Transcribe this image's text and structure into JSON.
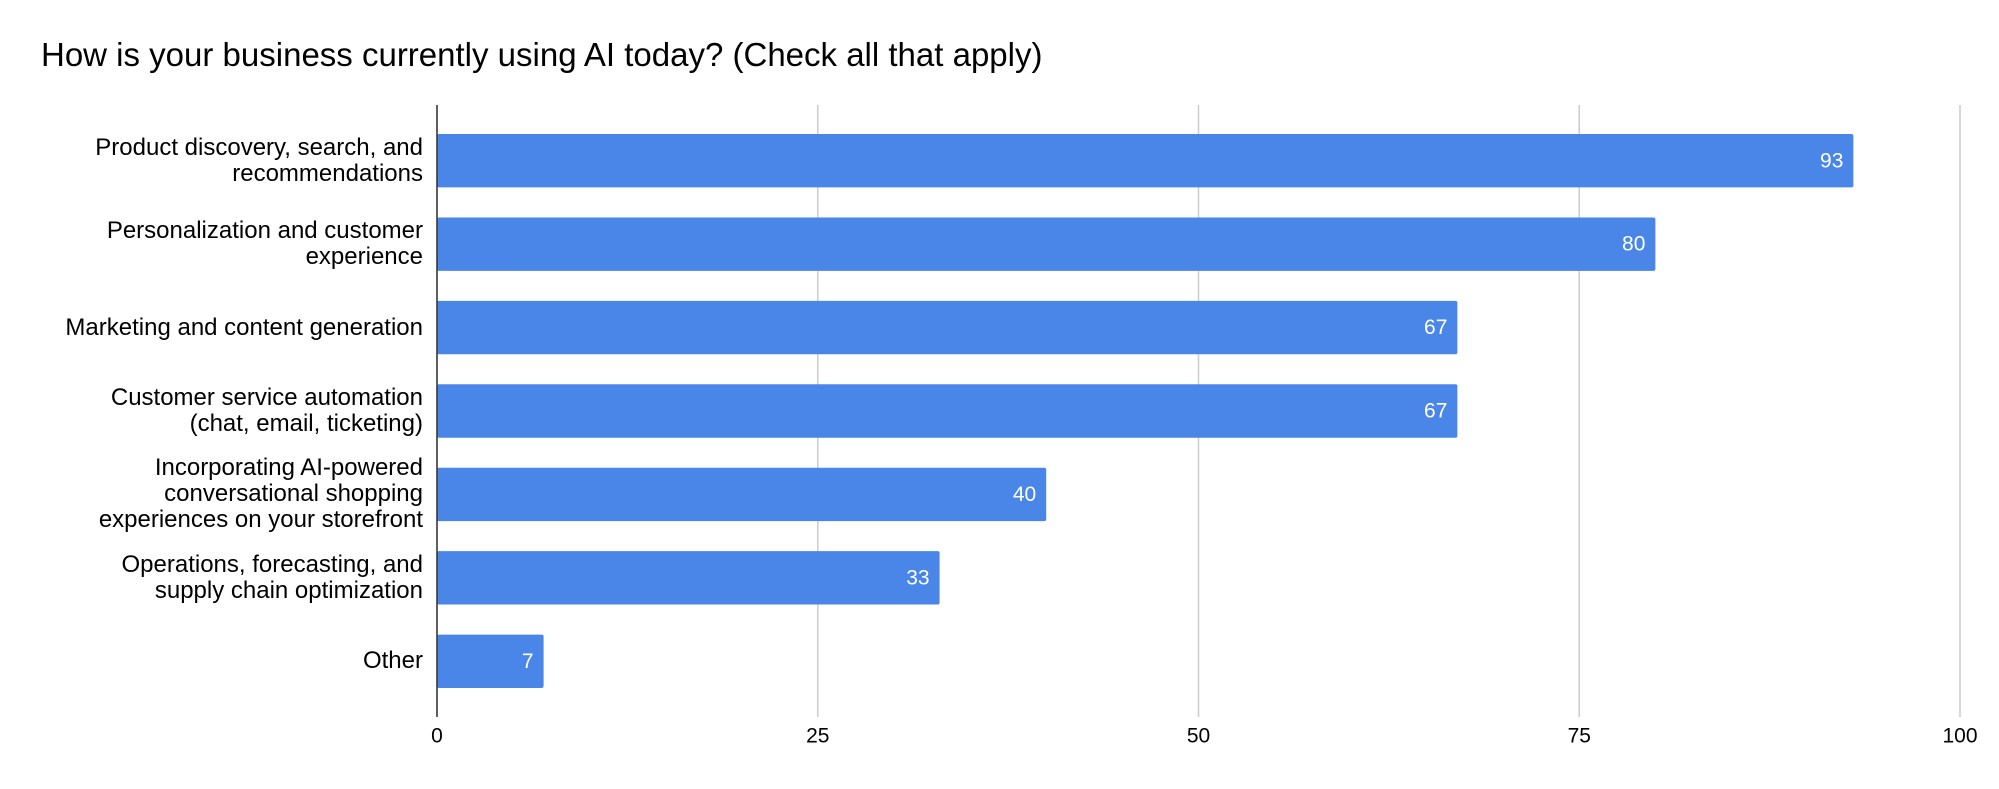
{
  "chart_data": {
    "type": "bar",
    "orientation": "horizontal",
    "title": "How is your business currently using AI today? (Check all that apply)",
    "categories": [
      "Product discovery, search, and recommendations",
      "Personalization and customer experience",
      "Marketing and content generation",
      "Customer service automation (chat, email, ticketing)",
      "Incorporating AI-powered conversational shopping experiences on your storefront",
      "Operations, forecasting, and supply chain optimization",
      "Other"
    ],
    "values": [
      93,
      80,
      67,
      67,
      40,
      33,
      7
    ],
    "color": "#4a86e8",
    "xlim": [
      0,
      100
    ],
    "xticks": [
      0,
      25,
      50,
      75,
      100
    ],
    "grid": true
  }
}
